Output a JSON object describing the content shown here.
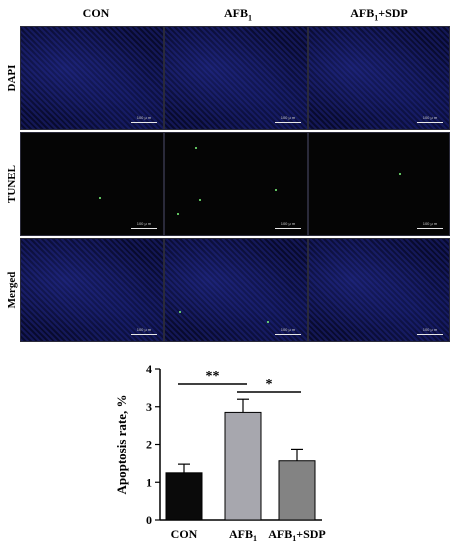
{
  "microscopy": {
    "columns": [
      {
        "label": "CON",
        "sub": "",
        "suffix": ""
      },
      {
        "label": "AFB",
        "sub": "1",
        "suffix": ""
      },
      {
        "label": "AFB",
        "sub": "1",
        "suffix": "+SDP"
      }
    ],
    "rows": [
      "DAPI",
      "TUNEL",
      "Merged"
    ],
    "scale_bar_text": "100 μ m"
  },
  "chart_data": {
    "type": "bar",
    "categories": [
      {
        "label": "CON",
        "sub": "",
        "suffix": ""
      },
      {
        "label": "AFB",
        "sub": "1",
        "suffix": ""
      },
      {
        "label": "AFB",
        "sub": "1",
        "suffix": "+SDP"
      }
    ],
    "values": [
      1.25,
      2.85,
      1.57
    ],
    "errors": [
      0.23,
      0.35,
      0.3
    ],
    "bar_colors": [
      "#0a0a0a",
      "#a7a7ae",
      "#838383"
    ],
    "ylabel": "Apoptosis rate, %",
    "ylim": [
      0,
      4
    ],
    "yticks": [
      0,
      1,
      2,
      3,
      4
    ],
    "grid": false,
    "significance": [
      {
        "from": 0,
        "to": 1,
        "label": "**"
      },
      {
        "from": 1,
        "to": 2,
        "label": "*"
      }
    ]
  }
}
